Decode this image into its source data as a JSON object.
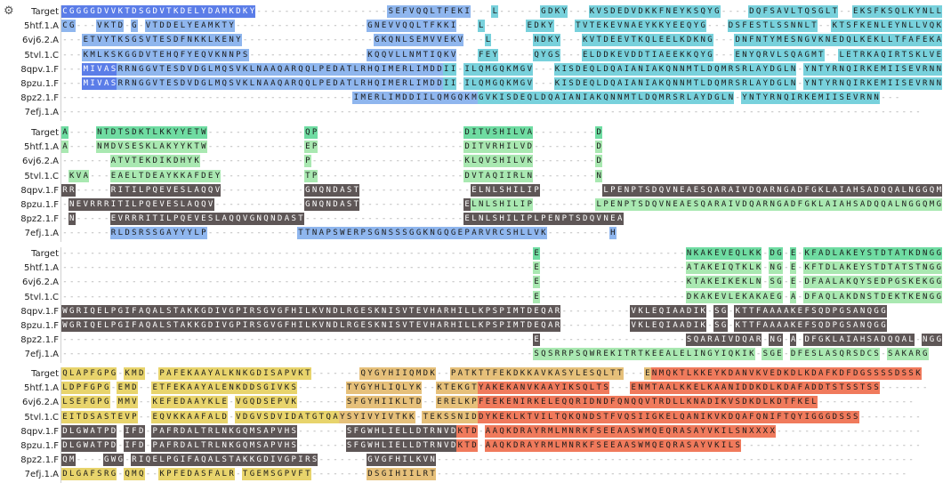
{
  "toolbar": {
    "settings_icon": "gear-icon",
    "settings_glyph": "⚙"
  },
  "palette": {
    "blue": "#5b7de8",
    "lightblue": "#8fb6ee",
    "cyan": "#78d1dc",
    "green": "#6fdca2",
    "lightgreen": "#a9e8b1",
    "dark": "#5e5656",
    "orange": "#f0a24e",
    "salmon": "#f07a5c",
    "yellow": "#e8d46c",
    "tan": "#e6c07a"
  },
  "blocks": [
    {
      "rows": [
        {
          "label": "Target",
          "seq": "CGGGGDVVKTDSGDVTKDELYDAMKDKY-------------------SEFVQQLTFEKI---L------GDKY---KVSDEDVDKKFNEYKSQYG----DQFSAVLTQSGLT--EKSFKSQLKYNLLVQKATE---"
        },
        {
          "label": "5htf.1.A",
          "seq": "CG---VKTD-G-VTDDELYEAMKTY-------------------GNEVVQQLTFKKI---L------EDKY---TVTEKEVNAEYKKYEEQYG---DSFESTLSSNNLT--KTSFKENLEYNLLVQKATE---"
        },
        {
          "label": "6vj6.2.A",
          "seq": "---ETVYTKSGSVTESDFNKKLKENY-------------------GKQNLSEMVVEKV---L------NDKY---KVTDEEVTKQLEELKDKNG---DNFNTYMESNGVKNEDQLKEKLLTFAFEKAIK---"
        },
        {
          "label": "5tvl.1.C",
          "seq": "---KMLKSKGGDVTEHQFYEQVKNNPS-----------------KQQVLLNMTIQKV---FEY-----QYGS---ELDDKEVDDTIAEEKKQYG---ENYQRVLSQAGMT--LETRKAQIRTSKLVELAVK--"
        },
        {
          "label": "8qpv.1.F",
          "seq": "---MIVASRRNGGVTESDVDGLMQSVKLNAAQARQQLPEDATLRHQIMERLIMDDII-ILQMGQKMGV---KISDEQLDQAIANIAKQNNMTLDQMRSRLAYDGLN-YNTYRNQIRKEMIISEVRNNEV"
        },
        {
          "label": "8pzu.1.F",
          "seq": "---MIVASRRNGGVTESDVDGLMQSVKLNAAQARQQLPEDATLRHQIMERLIMDDII-ILQMGQKMGV---KISDEQLDQAIANIAKQNNMTLDQMRSRLAYDGLN-YNTYRNQIRKEMIISEVRNN---"
        },
        {
          "label": "8pz2.1.F",
          "seq": "------------------------------------------IMERLIMDDIILQMGQKMGVKISDEQLDQAIANIAKQNNMTLDQMRSRLAYDGLN-YNTYRNQIRKEMIISEVRNN---"
        },
        {
          "label": "7efj.1.A",
          "seq": "----------------------------------------------------------------------------------------------------------------------------"
        }
      ]
    },
    {
      "rows": [
        {
          "label": "Target",
          "seq": "A----NTDTSDKTLKKYYETW--------------QP---------------------DITVSHILVA---------D"
        },
        {
          "label": "5htf.1.A",
          "seq": "A----NMDVSESKLAKYYKTW--------------EP---------------------DITVRHILVD---------D"
        },
        {
          "label": "6vj6.2.A",
          "seq": "-------ATVTEKDIKDHYK---------------P----------------------KLQVSHILVK---------D"
        },
        {
          "label": "5tvl.1.C",
          "seq": "-KVA---EAELTDEAYKKAFDEY------------TP---------------------DVTAQIIRLN---------N"
        },
        {
          "label": "8qpv.1.F",
          "seq": "RR-----RITILPQEVESLAQQV------------GNQNDAST----------------ELNLSHILIP---------LPENPTSDQVNEAESQARAIVDQARNGADFGKLAIAHSADQQALNGGQMG"
        },
        {
          "label": "8pzu.1.F",
          "seq": "-NEVRRRITILPQEVESLAQQV-------------GNQNDAST---------------ELNLSHILIP---------LPENPTSDQVNEAESQARAIVDQARNGADFGKLAIAHSADQQALNGGQMG"
        },
        {
          "label": "8pz2.1.F",
          "seq": "-N-----EVRRRITILPQEVESLAQQVGNQNDAST-----------------------ELNLSHILIPLPENPTSDQVNEA"
        },
        {
          "label": "7efj.1.A",
          "seq": "-------RLDSRSSGAYYYLP-------------TTNAPSWERPSGNSSSGGKNGQGEPARVRCSHLLVK---------H"
        }
      ]
    },
    {
      "rows": [
        {
          "label": "Target",
          "seq": "--------------------------------------------------------------------E---------------------NKAKEVEQLKK-DG-E-KFADLAKEYSTDTATKDNGG"
        },
        {
          "label": "5htf.1.A",
          "seq": "--------------------------------------------------------------------E---------------------ATAKEIQTKLK-NG-E-KFTDLAKEYSTDTATSTNGG"
        },
        {
          "label": "6vj6.2.A",
          "seq": "--------------------------------------------------------------------E---------------------KTAKEIKEKLN-SG-E-DFAALAKQYSEDPGSKEKGG"
        },
        {
          "label": "5tvl.1.C",
          "seq": "--------------------------------------------------------------------E---------------------DKAKEVLEKAKAEG-A-DFAQLAKDNSTDEKTKENGG"
        },
        {
          "label": "8qpv.1.F",
          "seq": "WGRIQELPGIFAQALSTAKKGDIVGPIRSGVGFHILKVNDLRGESKNISVTEVHARHILLKPSPIMTDEQAR----------VKLEQIAADIK-SG-KTTFAAAAKEFSQDPGSANQGG"
        },
        {
          "label": "8pzu.1.F",
          "seq": "WGRIQELPGIFAQALSTAKKGDIVGPIRSGVGFHILKVNDLRGESKNISVTEVHARHILLKPSPIMTDEQAR----------VKLEQIAADIK-SG-KTTFAAAAKEFSQDPGSANQGG"
        },
        {
          "label": "8pz2.1.F",
          "seq": "--------------------------------------------------------------------E---------------------SQARAIVDQAR-NG-A-DFGKLAIAHSADQQAL-NGG"
        },
        {
          "label": "7efj.1.A",
          "seq": "--------------------------------------------------------------------SQSRRPSQWREKITRTKEEALELINGYIQKIK-SGE-DFESLASQRSDCS-SAKARG"
        }
      ]
    },
    {
      "rows": [
        {
          "label": "Target",
          "seq": "QLAPFGPG-KMD--PAFEKAAYALKNKGDISAPVKT-------QYGYHIIQMDK--PATKTTFEKDKKAVKASYLESQLTT---ENMQKTLKKEYKDANVKVEDKDLKDAFKDFDGSSSSDSSK"
        },
        {
          "label": "5htf.1.A",
          "seq": "LDPFGPG-EMD--ETFEKAAYALENKDDSGIVKS-------TYGYHLIQLYK--KTEKGTYAKEKANVKAAYIKSQLTS---ENMTAALKKELKAANIDDKDLKDAFADDTSTSSTSS-------"
        },
        {
          "label": "6vj6.2.A",
          "seq": "LSEFGPG-MMV--KEFEDAAYKLE-VGQDSEPVK-------SFGYHIIKLTD--ERELKPFEEKENIRKELEQQRIDNDFQNQQVTRDLLKNADIKVSDKDLKDTFKEL--------------"
        },
        {
          "label": "5tvl.1.C",
          "seq": "EITDSASTEVP--EQVKKAAFALD-VDGVSDVIDATGTQAYSYIVYIVTKK-TEKSSNIDDYKEKLKTVILTQKQNDSTFVQSIIGKELQANIKVKDQAFQNIFTQYIGGGDSSS---------"
        },
        {
          "label": "8qpv.1.F",
          "seq": "DLGWATPD-IFD-PAFRDALTRLNKGQMSAPVHS-------SFGWHLIELLDTRNVDKTD-AAQKDRAYRMLMNRKFSEEAASWMQEQRASAYVKILSNXXXX---------------------"
        },
        {
          "label": "8pzu.1.F",
          "seq": "DLGWATPD-IFD-PAFRDALTRLNKGQMSAPVHS-------SFGWHLIELLDTRNVDKTD-AAQKDRAYRMLMNRKFSEEAASWMQEQRASAYVKILS--------------------------"
        },
        {
          "label": "8pz2.1.F",
          "seq": "QM----GWG-RIQELPGIFAQALSTAKKGDIVGPIRS-------GVGFHILKVN---------------------------------------------------------------------"
        },
        {
          "label": "7efj.1.A",
          "seq": "DLGAFSRG-QMQ--KPFEDASFALR-TGEMSGPVFT--------DSGIHIILRT--------------------------------------------------------------------"
        }
      ]
    }
  ]
}
